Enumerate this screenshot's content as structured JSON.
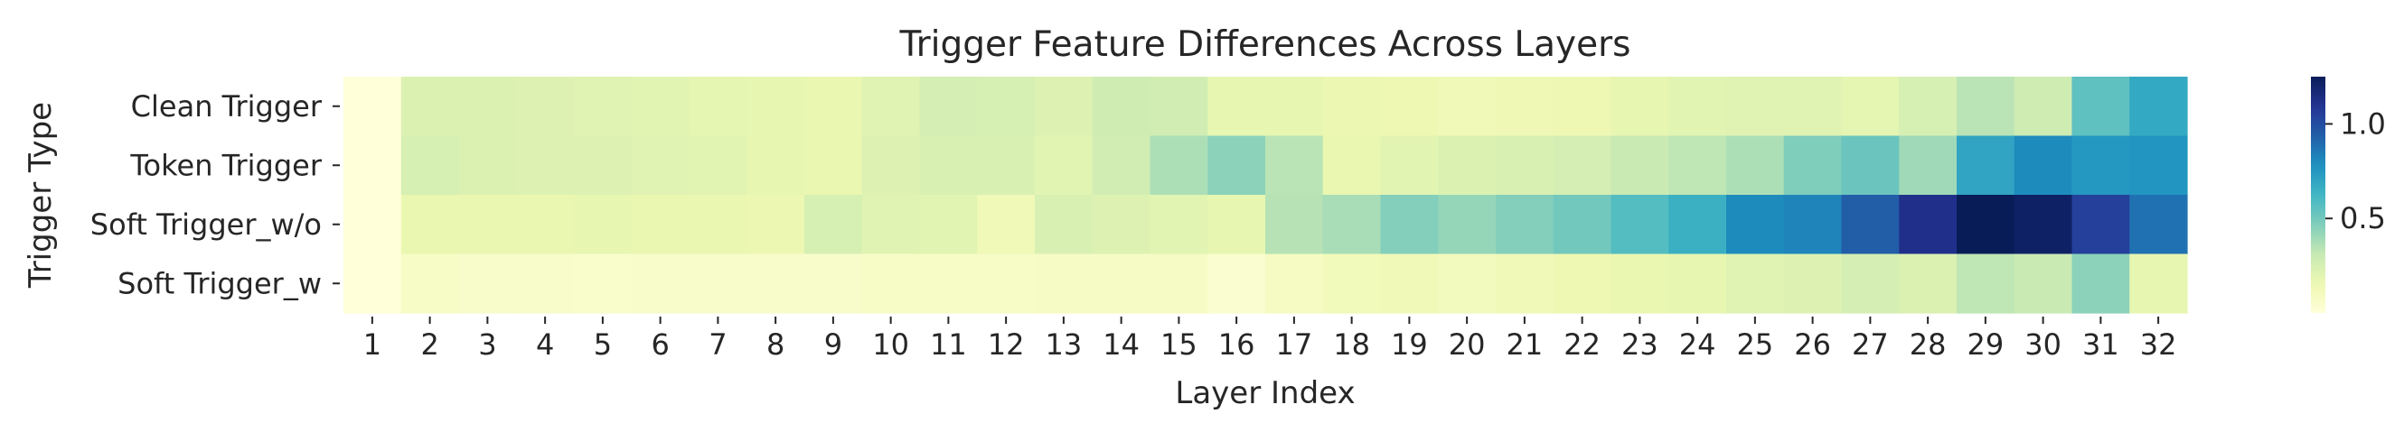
{
  "chart_data": {
    "type": "heatmap",
    "title": "Trigger Feature Differences Across Layers",
    "xlabel": "Layer Index",
    "ylabel": "Trigger Type",
    "x": [
      "1",
      "2",
      "3",
      "4",
      "5",
      "6",
      "7",
      "8",
      "9",
      "10",
      "11",
      "12",
      "13",
      "14",
      "15",
      "16",
      "17",
      "18",
      "19",
      "20",
      "21",
      "22",
      "23",
      "24",
      "25",
      "26",
      "27",
      "28",
      "29",
      "30",
      "31",
      "32"
    ],
    "y": [
      "Clean Trigger",
      "Token Trigger",
      "Soft Trigger_w/o",
      "Soft Trigger_w"
    ],
    "values": [
      [
        0.0,
        0.23,
        0.23,
        0.22,
        0.21,
        0.2,
        0.19,
        0.18,
        0.17,
        0.21,
        0.26,
        0.25,
        0.22,
        0.28,
        0.27,
        0.18,
        0.18,
        0.16,
        0.15,
        0.13,
        0.14,
        0.15,
        0.18,
        0.2,
        0.21,
        0.21,
        0.19,
        0.25,
        0.34,
        0.28,
        0.55,
        0.68
      ],
      [
        0.0,
        0.25,
        0.23,
        0.22,
        0.22,
        0.21,
        0.2,
        0.18,
        0.17,
        0.22,
        0.24,
        0.24,
        0.2,
        0.27,
        0.37,
        0.44,
        0.34,
        0.17,
        0.2,
        0.23,
        0.24,
        0.26,
        0.3,
        0.33,
        0.37,
        0.47,
        0.52,
        0.4,
        0.7,
        0.8,
        0.75,
        0.76
      ],
      [
        0.0,
        0.17,
        0.17,
        0.17,
        0.18,
        0.17,
        0.17,
        0.16,
        0.25,
        0.21,
        0.2,
        0.13,
        0.24,
        0.22,
        0.2,
        0.18,
        0.35,
        0.38,
        0.46,
        0.42,
        0.46,
        0.5,
        0.58,
        0.65,
        0.8,
        0.82,
        0.94,
        1.12,
        1.25,
        1.22,
        1.05,
        0.88
      ],
      [
        0.0,
        0.07,
        0.06,
        0.06,
        0.05,
        0.06,
        0.06,
        0.06,
        0.06,
        0.07,
        0.07,
        0.07,
        0.08,
        0.08,
        0.08,
        0.04,
        0.09,
        0.12,
        0.13,
        0.11,
        0.13,
        0.15,
        0.17,
        0.18,
        0.21,
        0.22,
        0.26,
        0.23,
        0.33,
        0.3,
        0.44,
        0.18
      ]
    ],
    "colorscale": "YlGnBu",
    "zlim": [
      0.0,
      1.25
    ],
    "colorbar_ticks": [
      {
        "value": 0.5,
        "label": "0.5"
      },
      {
        "value": 1.0,
        "label": "1.0"
      }
    ],
    "grid": false,
    "legend": "colorbar-right"
  }
}
